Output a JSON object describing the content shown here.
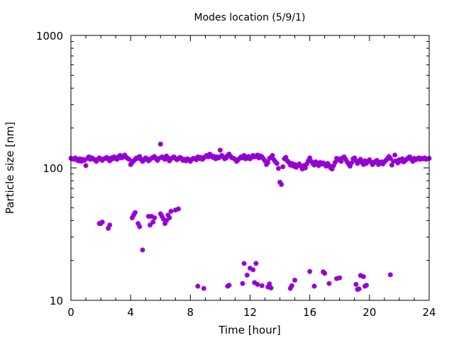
{
  "chart_data": {
    "type": "scatter",
    "title": "Modes location (5/9/1)",
    "xlabel": "Time [hour]",
    "ylabel": "Particle size [nm]",
    "xlim": [
      0,
      24
    ],
    "ylim": [
      10,
      1000
    ],
    "yscale": "log",
    "x_ticks": [
      "0",
      "4",
      "8",
      "12",
      "16",
      "20",
      "24"
    ],
    "y_ticks": [
      "10",
      "100",
      "1000"
    ],
    "marker_color": "#9400d3",
    "marker": "asterisk",
    "series": [
      {
        "points": [
          [
            0.0,
            118
          ],
          [
            0.1,
            117
          ],
          [
            0.2,
            116
          ],
          [
            0.3,
            119
          ],
          [
            0.4,
            115
          ],
          [
            0.5,
            113
          ],
          [
            0.6,
            117
          ],
          [
            0.7,
            112
          ],
          [
            0.8,
            116
          ],
          [
            0.9,
            114
          ],
          [
            1.0,
            104
          ],
          [
            1.1,
            118
          ],
          [
            1.2,
            121
          ],
          [
            1.3,
            116
          ],
          [
            1.4,
            119
          ],
          [
            1.5,
            117
          ],
          [
            1.6,
            115
          ],
          [
            1.7,
            112
          ],
          [
            1.8,
            116
          ],
          [
            1.9,
            119
          ],
          [
            2.0,
            116
          ],
          [
            2.1,
            114
          ],
          [
            2.2,
            117
          ],
          [
            2.3,
            118
          ],
          [
            2.4,
            120
          ],
          [
            2.5,
            116
          ],
          [
            2.6,
            113
          ],
          [
            2.7,
            119
          ],
          [
            2.8,
            117
          ],
          [
            2.9,
            121
          ],
          [
            3.0,
            118
          ],
          [
            3.1,
            116
          ],
          [
            3.2,
            122
          ],
          [
            3.3,
            124
          ],
          [
            3.4,
            119
          ],
          [
            3.5,
            121
          ],
          [
            3.6,
            125
          ],
          [
            3.7,
            120
          ],
          [
            3.8,
            118
          ],
          [
            3.9,
            116
          ],
          [
            4.0,
            106
          ],
          [
            4.1,
            110
          ],
          [
            4.2,
            113
          ],
          [
            4.3,
            116
          ],
          [
            4.4,
            119
          ],
          [
            4.5,
            118
          ],
          [
            4.6,
            122
          ],
          [
            4.7,
            116
          ],
          [
            4.8,
            112
          ],
          [
            4.9,
            115
          ],
          [
            5.0,
            119
          ],
          [
            5.1,
            117
          ],
          [
            5.2,
            113
          ],
          [
            5.3,
            116
          ],
          [
            5.4,
            118
          ],
          [
            5.5,
            120
          ],
          [
            5.6,
            122
          ],
          [
            5.7,
            117
          ],
          [
            5.8,
            114
          ],
          [
            5.9,
            118
          ],
          [
            6.0,
            151
          ],
          [
            6.1,
            121
          ],
          [
            6.2,
            118
          ],
          [
            6.3,
            116
          ],
          [
            6.4,
            123
          ],
          [
            6.5,
            119
          ],
          [
            6.6,
            113
          ],
          [
            6.7,
            117
          ],
          [
            6.8,
            119
          ],
          [
            6.9,
            121
          ],
          [
            7.0,
            118
          ],
          [
            7.1,
            115
          ],
          [
            7.2,
            117
          ],
          [
            7.3,
            120
          ],
          [
            7.4,
            118
          ],
          [
            7.5,
            114
          ],
          [
            7.6,
            116
          ],
          [
            7.7,
            113
          ],
          [
            7.8,
            117
          ],
          [
            7.9,
            115
          ],
          [
            8.0,
            112
          ],
          [
            8.1,
            116
          ],
          [
            8.2,
            118
          ],
          [
            8.3,
            117
          ],
          [
            8.4,
            115
          ],
          [
            8.5,
            121
          ],
          [
            8.6,
            118
          ],
          [
            8.7,
            120
          ],
          [
            8.8,
            116
          ],
          [
            8.9,
            119
          ],
          [
            9.0,
            122
          ],
          [
            9.1,
            124
          ],
          [
            9.2,
            121
          ],
          [
            9.3,
            127
          ],
          [
            9.4,
            124
          ],
          [
            9.5,
            120
          ],
          [
            9.6,
            122
          ],
          [
            9.7,
            117
          ],
          [
            9.8,
            121
          ],
          [
            9.9,
            119
          ],
          [
            10.0,
            136
          ],
          [
            10.1,
            124
          ],
          [
            10.2,
            121
          ],
          [
            10.3,
            117
          ],
          [
            10.4,
            119
          ],
          [
            10.5,
            124
          ],
          [
            10.6,
            127
          ],
          [
            10.7,
            122
          ],
          [
            10.8,
            119
          ],
          [
            10.9,
            118
          ],
          [
            11.0,
            116
          ],
          [
            11.1,
            112
          ],
          [
            11.2,
            115
          ],
          [
            11.3,
            118
          ],
          [
            11.4,
            121
          ],
          [
            11.5,
            119
          ],
          [
            11.6,
            124
          ],
          [
            11.7,
            117
          ],
          [
            11.8,
            119
          ],
          [
            11.9,
            122
          ],
          [
            12.0,
            117
          ],
          [
            12.1,
            120
          ],
          [
            12.2,
            124
          ],
          [
            12.3,
            121
          ],
          [
            12.4,
            122
          ],
          [
            12.5,
            125
          ],
          [
            12.6,
            119
          ],
          [
            12.7,
            123
          ],
          [
            12.8,
            121
          ],
          [
            12.9,
            117
          ],
          [
            13.0,
            113
          ],
          [
            13.1,
            106
          ],
          [
            13.2,
            110
          ],
          [
            13.3,
            118
          ],
          [
            13.4,
            120
          ],
          [
            13.5,
            124
          ],
          [
            13.6,
            115
          ],
          [
            13.7,
            111
          ],
          [
            13.8,
            108
          ],
          [
            13.9,
            99
          ],
          [
            14.0,
            78
          ],
          [
            14.1,
            75
          ],
          [
            14.2,
            102
          ],
          [
            14.3,
            117
          ],
          [
            14.4,
            120
          ],
          [
            14.5,
            113
          ],
          [
            14.6,
            110
          ],
          [
            14.7,
            105
          ],
          [
            14.8,
            108
          ],
          [
            14.9,
            103
          ],
          [
            15.0,
            106
          ],
          [
            15.1,
            101
          ],
          [
            15.2,
            105
          ],
          [
            15.3,
            107
          ],
          [
            15.4,
            103
          ],
          [
            15.5,
            98
          ],
          [
            15.6,
            104
          ],
          [
            15.7,
            100
          ],
          [
            15.8,
            107
          ],
          [
            15.9,
            113
          ],
          [
            16.0,
            119
          ],
          [
            16.1,
            112
          ],
          [
            16.2,
            108
          ],
          [
            16.3,
            105
          ],
          [
            16.4,
            111
          ],
          [
            16.5,
            108
          ],
          [
            16.6,
            104
          ],
          [
            16.7,
            110
          ],
          [
            16.8,
            107
          ],
          [
            16.9,
            109
          ],
          [
            17.0,
            106
          ],
          [
            17.1,
            103
          ],
          [
            17.2,
            108
          ],
          [
            17.3,
            104
          ],
          [
            17.4,
            100
          ],
          [
            17.5,
            98
          ],
          [
            17.6,
            104
          ],
          [
            17.7,
            110
          ],
          [
            17.8,
            118
          ],
          [
            17.9,
            115
          ],
          [
            18.0,
            117
          ],
          [
            18.1,
            112
          ],
          [
            18.2,
            119
          ],
          [
            18.3,
            121
          ],
          [
            18.4,
            116
          ],
          [
            18.5,
            111
          ],
          [
            18.6,
            107
          ],
          [
            18.7,
            103
          ],
          [
            18.8,
            109
          ],
          [
            18.9,
            117
          ],
          [
            19.0,
            119
          ],
          [
            19.1,
            113
          ],
          [
            19.2,
            108
          ],
          [
            19.3,
            112
          ],
          [
            19.4,
            116
          ],
          [
            19.5,
            110
          ],
          [
            19.6,
            106
          ],
          [
            19.7,
            113
          ],
          [
            19.8,
            108
          ],
          [
            19.9,
            112
          ],
          [
            20.0,
            115
          ],
          [
            20.1,
            111
          ],
          [
            20.2,
            106
          ],
          [
            20.3,
            109
          ],
          [
            20.4,
            112
          ],
          [
            20.5,
            114
          ],
          [
            20.6,
            106
          ],
          [
            20.7,
            109
          ],
          [
            20.8,
            111
          ],
          [
            20.9,
            107
          ],
          [
            21.0,
            111
          ],
          [
            21.1,
            114
          ],
          [
            21.2,
            117
          ],
          [
            21.3,
            122
          ],
          [
            21.4,
            118
          ],
          [
            21.5,
            105
          ],
          [
            21.6,
            112
          ],
          [
            21.7,
            125
          ],
          [
            21.8,
            113
          ],
          [
            21.9,
            109
          ],
          [
            22.0,
            115
          ],
          [
            22.1,
            113
          ],
          [
            22.2,
            117
          ],
          [
            22.3,
            111
          ],
          [
            22.4,
            114
          ],
          [
            22.5,
            116
          ],
          [
            22.6,
            119
          ],
          [
            22.7,
            121
          ],
          [
            22.8,
            116
          ],
          [
            22.9,
            112
          ],
          [
            23.0,
            118
          ],
          [
            23.1,
            115
          ],
          [
            23.2,
            117
          ],
          [
            23.3,
            119
          ],
          [
            23.4,
            116
          ],
          [
            23.5,
            118
          ],
          [
            23.6,
            117
          ],
          [
            23.7,
            119
          ],
          [
            23.8,
            116
          ],
          [
            24.0,
            118
          ],
          [
            1.9,
            38
          ],
          [
            2.0,
            38
          ],
          [
            2.1,
            39
          ],
          [
            2.5,
            35
          ],
          [
            2.6,
            37
          ],
          [
            4.1,
            42
          ],
          [
            4.2,
            44
          ],
          [
            4.3,
            46
          ],
          [
            4.5,
            38
          ],
          [
            4.6,
            36
          ],
          [
            4.8,
            24
          ],
          [
            5.2,
            43
          ],
          [
            5.3,
            37
          ],
          [
            5.4,
            43
          ],
          [
            5.5,
            39
          ],
          [
            5.6,
            42
          ],
          [
            6.0,
            45
          ],
          [
            6.1,
            43
          ],
          [
            6.2,
            41
          ],
          [
            6.3,
            38
          ],
          [
            6.4,
            40
          ],
          [
            6.5,
            44
          ],
          [
            6.6,
            42
          ],
          [
            6.7,
            47
          ],
          [
            7.0,
            48
          ],
          [
            7.2,
            49
          ],
          [
            8.5,
            12.8
          ],
          [
            8.9,
            12.3
          ],
          [
            10.5,
            12.8
          ],
          [
            10.6,
            13.0
          ],
          [
            11.5,
            13.4
          ],
          [
            11.6,
            19.0
          ],
          [
            11.8,
            15.5
          ],
          [
            12.0,
            17.5
          ],
          [
            12.2,
            17.0
          ],
          [
            12.4,
            19.0
          ],
          [
            12.3,
            13.6
          ],
          [
            12.5,
            13.2
          ],
          [
            12.8,
            12.9
          ],
          [
            13.2,
            12.6
          ],
          [
            13.3,
            13.3
          ],
          [
            13.4,
            12.4
          ],
          [
            14.7,
            12.3
          ],
          [
            14.8,
            12.9
          ],
          [
            15.0,
            14.2
          ],
          [
            16.0,
            16.5
          ],
          [
            16.3,
            12.8
          ],
          [
            16.9,
            16.4
          ],
          [
            17.0,
            16.0
          ],
          [
            17.3,
            13.4
          ],
          [
            17.8,
            14.6
          ],
          [
            18.0,
            14.8
          ],
          [
            19.1,
            13.2
          ],
          [
            19.2,
            12.1
          ],
          [
            19.3,
            12.2
          ],
          [
            19.4,
            15.4
          ],
          [
            19.6,
            15.1
          ],
          [
            19.7,
            12.8
          ],
          [
            19.8,
            13.0
          ],
          [
            21.4,
            15.6
          ]
        ]
      }
    ]
  }
}
